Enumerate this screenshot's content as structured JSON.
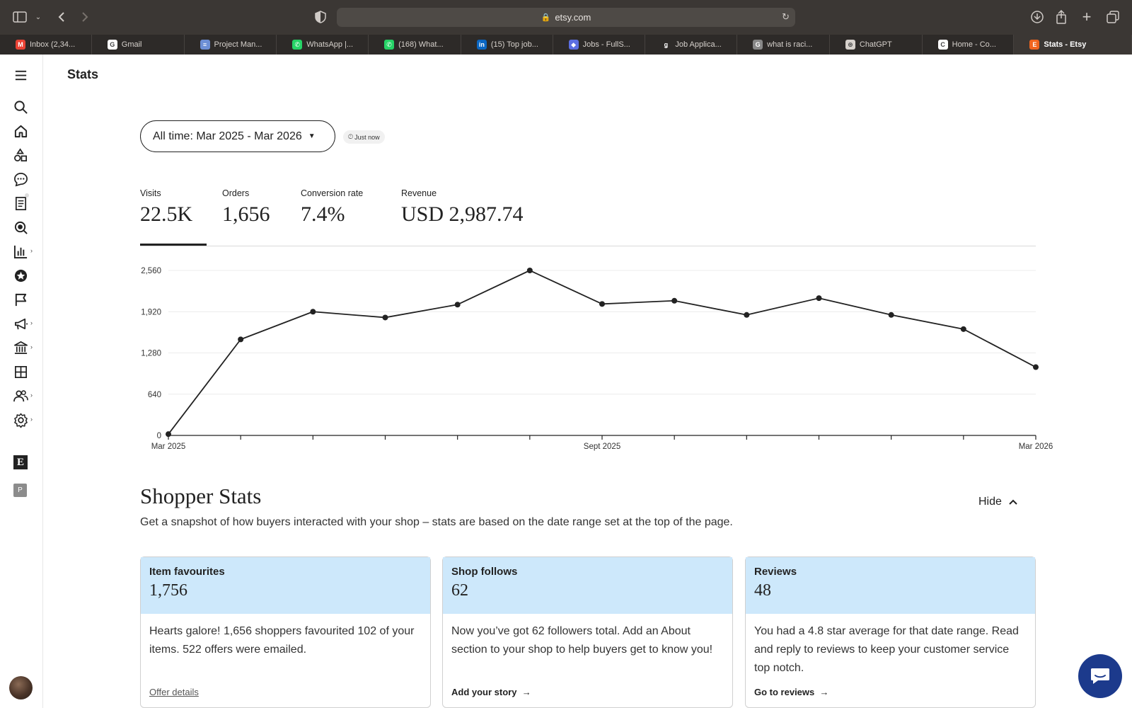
{
  "browser": {
    "url": "etsy.com",
    "tabs": [
      {
        "title": "Inbox (2,34...",
        "favicon_color": "#ea4335",
        "glyph": "M",
        "active": false,
        "width": 133
      },
      {
        "title": "Gmail",
        "favicon_color": "#ffffff",
        "glyph": "G",
        "active": false,
        "width": 134
      },
      {
        "title": "Project Man...",
        "favicon_color": "#6d8fd6",
        "glyph": "≡",
        "active": false,
        "width": 134
      },
      {
        "title": "WhatsApp |...",
        "favicon_color": "#25d366",
        "glyph": "✆",
        "active": false,
        "width": 133
      },
      {
        "title": "(168) What...",
        "favicon_color": "#25d366",
        "glyph": "✆",
        "active": false,
        "width": 134
      },
      {
        "title": "(15) Top job...",
        "favicon_color": "#0a66c2",
        "glyph": "in",
        "active": false,
        "width": 133
      },
      {
        "title": "Jobs - FullS...",
        "favicon_color": "#5b6ee1",
        "glyph": "◆",
        "active": false,
        "width": 134
      },
      {
        "title": "Job Applica...",
        "favicon_color": "#2d2a28",
        "glyph": "ǥ",
        "active": false,
        "width": 133
      },
      {
        "title": "what is raci...",
        "favicon_color": "#888888",
        "glyph": "G",
        "active": false,
        "width": 134
      },
      {
        "title": "ChatGPT",
        "favicon_color": "#d6d1cc",
        "glyph": "⊛",
        "active": false,
        "width": 134
      },
      {
        "title": "Home - Co...",
        "favicon_color": "#ffffff",
        "glyph": "C",
        "active": false,
        "width": 133
      },
      {
        "title": "Stats - Etsy",
        "favicon_color": "#f1641e",
        "glyph": "E",
        "active": true,
        "width": 171
      }
    ]
  },
  "page": {
    "title": "Stats",
    "date_range": "All time: Mar 2025 - Mar 2026",
    "updated": "Just now"
  },
  "metrics": [
    {
      "label": "Visits",
      "value": "22.5K",
      "active": true
    },
    {
      "label": "Orders",
      "value": "1,656",
      "active": false
    },
    {
      "label": "Conversion rate",
      "value": "7.4%",
      "active": false
    },
    {
      "label": "Revenue",
      "value": "USD 2,987.74",
      "active": false
    }
  ],
  "chart_data": {
    "type": "line",
    "series": [
      {
        "values": [
          20,
          1490,
          1920,
          1830,
          2030,
          2560,
          2040,
          2090,
          1870,
          2130,
          1870,
          1650,
          1060
        ]
      }
    ],
    "x_tick_labels": [
      "Mar 2025",
      "Sept 2025",
      "Mar 2026"
    ],
    "x_tick_label_index": [
      0,
      6,
      12
    ],
    "x_points": 13,
    "y_ticks": [
      0,
      640,
      1280,
      1920,
      2560
    ],
    "y_tick_labels": [
      "0",
      "640",
      "1,280",
      "1,920",
      "2,560"
    ],
    "ylim": [
      0,
      2560
    ],
    "grid": true,
    "line_color": "#222222"
  },
  "shopper_stats": {
    "title": "Shopper Stats",
    "hide_label": "Hide",
    "description": "Get a snapshot of how buyers interacted with your shop – stats are based on the date range set at the top of the page.",
    "cards": [
      {
        "title": "Item favourites",
        "value": "1,756",
        "body": "Hearts galore! 1,656 shoppers favourited 102 of your items. 522 offers were emailed.",
        "link": "Offer details"
      },
      {
        "title": "Shop follows",
        "value": "62",
        "body": "Now you’ve got 62 followers total. Add an About section to your shop to help buyers get to know you!",
        "link": "Add your story"
      },
      {
        "title": "Reviews",
        "value": "48",
        "body": "You had a 4.8 star average for that date range. Read and reply to reviews to keep your customer service top notch.",
        "link": "Go to reviews"
      }
    ]
  },
  "rail_icons": [
    "menu-icon",
    "search-icon",
    "home-icon",
    "listings-icon",
    "messages-icon",
    "orders-icon",
    "marketing-search-icon",
    "stats-icon",
    "star-seller-icon",
    "flag-icon",
    "megaphone-icon",
    "finances-icon",
    "integrations-icon",
    "community-icon",
    "settings-icon"
  ]
}
